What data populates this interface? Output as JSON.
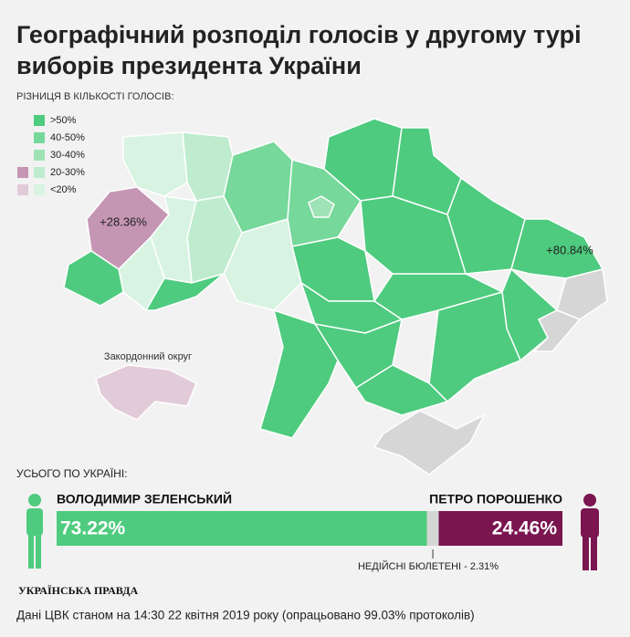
{
  "title": "Географічний розподіл голосів у другому турі виборів президента України",
  "map": {
    "legend_title": "РІЗНИЦЯ В КІЛЬКОСТІ ГОЛОСІВ:",
    "legend": [
      {
        "label": ">50%",
        "colors": [
          "#4ecb7e"
        ]
      },
      {
        "label": "40-50%",
        "colors": [
          "#76d89a"
        ]
      },
      {
        "label": "30-40%",
        "colors": [
          "#9ee2b6"
        ]
      },
      {
        "label": "20-30%",
        "colors": [
          "#c596b4",
          "#bfeccf"
        ]
      },
      {
        "label": "<20%",
        "colors": [
          "#e2cbd9",
          "#d9f3e2"
        ]
      }
    ],
    "region_labels": [
      "+28.36%",
      "+80.84%"
    ],
    "abroad_label": "Закордонний округ"
  },
  "totals": {
    "title": "УСЬОГО ПО УКРАЇНІ:",
    "segments": [
      {
        "name": "ВОЛОДИМИР ЗЕЛЕНСЬКИЙ",
        "value": 73.22,
        "value_label": "73.22%",
        "color": "#4ecb7e"
      },
      {
        "value": 2.31,
        "value_label": "НЕДІЙСНІ БЮЛЕТЕНІ - 2.31%",
        "color": "#d3d8d4"
      },
      {
        "name": "ПЕТРО ПОРОШЕНКО",
        "value": 24.46,
        "value_label": "24.46%",
        "color": "#7a1550"
      }
    ]
  },
  "source": "УКРАЇНСЬКА ПРАВДА",
  "footnote": "Дані ЦВК станом на 14:30 22 квітня 2019 року (опрацьовано 99.03% протоколів)"
}
